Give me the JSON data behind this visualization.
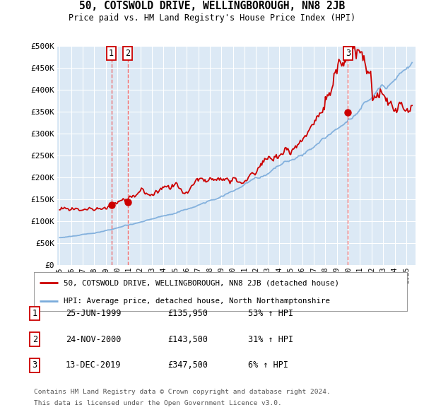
{
  "title": "50, COTSWOLD DRIVE, WELLINGBOROUGH, NN8 2JB",
  "subtitle": "Price paid vs. HM Land Registry's House Price Index (HPI)",
  "background_color": "#ffffff",
  "plot_bg_color": "#dce9f5",
  "grid_color": "#ffffff",
  "yticks": [
    0,
    50000,
    100000,
    150000,
    200000,
    250000,
    300000,
    350000,
    400000,
    450000,
    500000
  ],
  "ytick_labels": [
    "£0",
    "£50K",
    "£100K",
    "£150K",
    "£200K",
    "£250K",
    "£300K",
    "£350K",
    "£400K",
    "£450K",
    "£500K"
  ],
  "xmin": 1994.8,
  "xmax": 2025.8,
  "ymin": 0,
  "ymax": 500000,
  "sale1_date": 1999.48,
  "sale1_price": 135950,
  "sale2_date": 2000.9,
  "sale2_price": 143500,
  "sale3_date": 2019.95,
  "sale3_price": 347500,
  "red_line_color": "#cc0000",
  "blue_line_color": "#7aabdb",
  "vline_color": "#ee5555",
  "legend_line1": "50, COTSWOLD DRIVE, WELLINGBOROUGH, NN8 2JB (detached house)",
  "legend_line2": "HPI: Average price, detached house, North Northamptonshire",
  "table_rows": [
    {
      "num": "1",
      "date": "25-JUN-1999",
      "price": "£135,950",
      "change": "53% ↑ HPI"
    },
    {
      "num": "2",
      "date": "24-NOV-2000",
      "price": "£143,500",
      "change": "31% ↑ HPI"
    },
    {
      "num": "3",
      "date": "13-DEC-2019",
      "price": "£347,500",
      "change": "6% ↑ HPI"
    }
  ],
  "footnote1": "Contains HM Land Registry data © Crown copyright and database right 2024.",
  "footnote2": "This data is licensed under the Open Government Licence v3.0."
}
